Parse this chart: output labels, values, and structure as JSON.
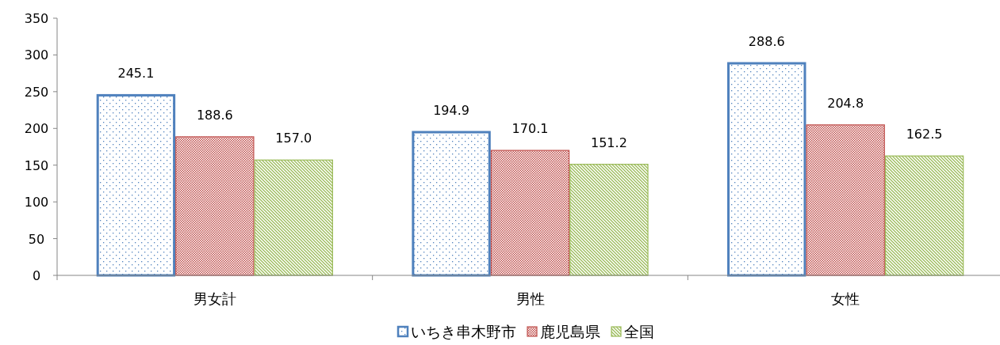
{
  "chart_data": {
    "type": "bar",
    "categories": [
      "男女計",
      "男性",
      "女性"
    ],
    "series": [
      {
        "name": "いちき串木野市",
        "color": "#4f81bd",
        "values": [
          245.1,
          194.9,
          288.6
        ],
        "value_labels": [
          "245.1",
          "194.9",
          "288.6"
        ]
      },
      {
        "name": "鹿児島県",
        "color": "#c0504d",
        "values": [
          188.6,
          170.1,
          204.8
        ],
        "value_labels": [
          "188.6",
          "170.1",
          "204.8"
        ]
      },
      {
        "name": "全国",
        "color": "#9bbb59",
        "values": [
          157.0,
          151.2,
          162.5
        ],
        "value_labels": [
          "157.0",
          "151.2",
          "162.5"
        ]
      }
    ],
    "ylim": [
      0,
      350
    ],
    "yticks": [
      0,
      50,
      100,
      150,
      200,
      250,
      300,
      350
    ],
    "grid": false,
    "legend": "bottom"
  }
}
